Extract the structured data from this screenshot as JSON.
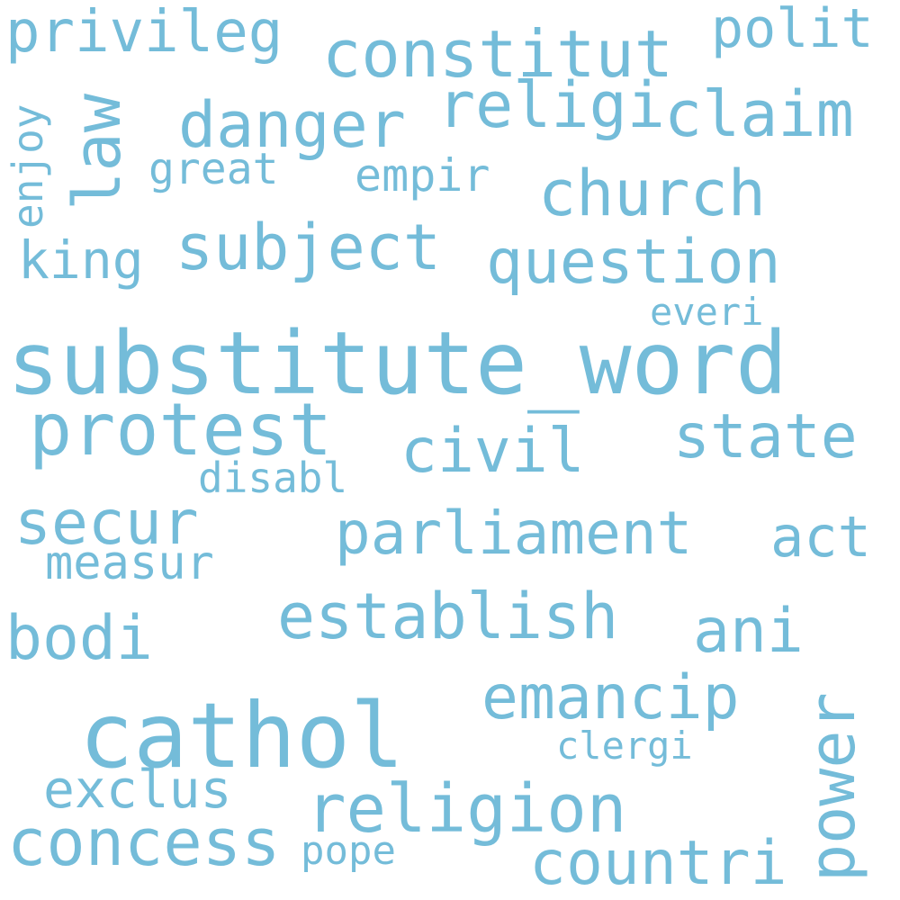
{
  "color": "#74bcd9",
  "words": [
    {
      "text": "substitute_word",
      "key": "substitute-word"
    },
    {
      "text": "cathol",
      "key": "cathol"
    },
    {
      "text": "protest",
      "key": "protest"
    },
    {
      "text": "constitut",
      "key": "constitut"
    },
    {
      "text": "subject",
      "key": "subject"
    },
    {
      "text": "religion",
      "key": "religion"
    },
    {
      "text": "parliament",
      "key": "parliament"
    },
    {
      "text": "establish",
      "key": "establish"
    },
    {
      "text": "concess",
      "key": "concess"
    },
    {
      "text": "danger",
      "key": "danger"
    },
    {
      "text": "claim",
      "key": "claim"
    },
    {
      "text": "church",
      "key": "church"
    },
    {
      "text": "question",
      "key": "question"
    },
    {
      "text": "state",
      "key": "state"
    },
    {
      "text": "civil",
      "key": "civil"
    },
    {
      "text": "secur",
      "key": "secur"
    },
    {
      "text": "emancip",
      "key": "emancip"
    },
    {
      "text": "power",
      "key": "power"
    },
    {
      "text": "privileg",
      "key": "privileg"
    },
    {
      "text": "religi",
      "key": "religi"
    },
    {
      "text": "law",
      "key": "law"
    },
    {
      "text": "countri",
      "key": "countri"
    },
    {
      "text": "ani",
      "key": "ani"
    },
    {
      "text": "bodi",
      "key": "bodi"
    },
    {
      "text": "polit",
      "key": "polit"
    },
    {
      "text": "king",
      "key": "king"
    },
    {
      "text": "act",
      "key": "act"
    },
    {
      "text": "exclus",
      "key": "exclus"
    },
    {
      "text": "measur",
      "key": "measur"
    },
    {
      "text": "empir",
      "key": "empir"
    },
    {
      "text": "great",
      "key": "great"
    },
    {
      "text": "enjoy",
      "key": "enjoy"
    },
    {
      "text": "disabl",
      "key": "disabl"
    },
    {
      "text": "clergi",
      "key": "clergi"
    },
    {
      "text": "pope",
      "key": "pope"
    },
    {
      "text": "everi",
      "key": "everi"
    }
  ]
}
